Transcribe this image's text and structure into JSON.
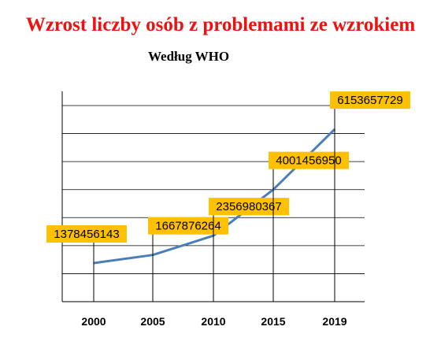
{
  "chart_data": {
    "type": "line",
    "title": "Wzrost liczby osób z problemami ze wzrokiem",
    "subtitle": "Według WHO",
    "xlabel": "",
    "ylabel": "",
    "categories": [
      "2000",
      "2005",
      "2010",
      "2015",
      "2019"
    ],
    "series": [
      {
        "values": [
          1378456143,
          1667876264,
          2356980367,
          4001456950,
          6153657729
        ]
      }
    ],
    "data_labels": [
      "1378456143",
      "1667876264",
      "2356980367",
      "4001456950",
      "6153657729"
    ],
    "ylim": [
      0,
      7000000000
    ],
    "grid": true,
    "legend": "none",
    "colors": {
      "title": "#ee1111",
      "line": "#4a7ebb",
      "label_fill": "#ffc000",
      "grid": "#000000"
    }
  }
}
